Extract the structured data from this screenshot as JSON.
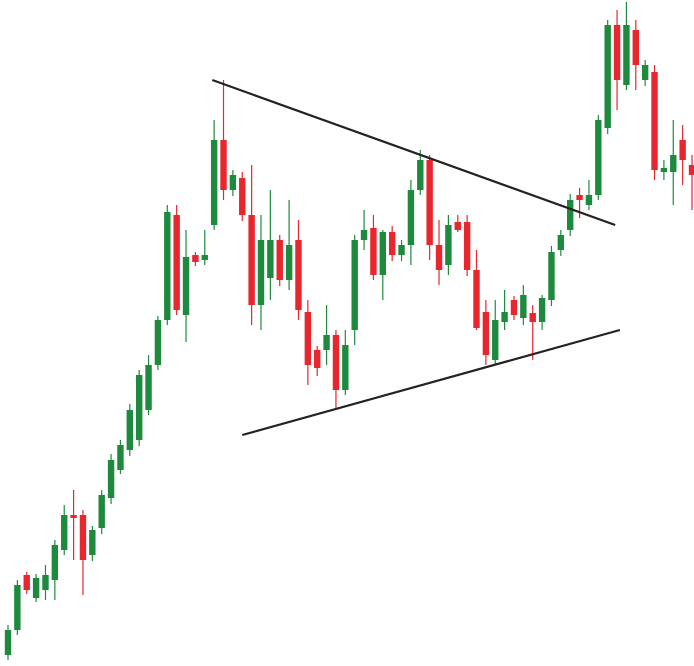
{
  "chart_data": {
    "type": "candlestick",
    "ylim": [
      0,
      666
    ],
    "up_color": "#1e8a3e",
    "down_color": "#e8262d",
    "line_color": "#222222",
    "open": [
      11,
      36,
      91,
      68,
      76,
      86,
      116,
      151,
      151,
      111,
      138,
      168,
      196,
      216,
      226,
      256,
      301,
      346,
      451,
      351,
      411,
      406,
      441,
      526,
      476,
      488,
      451,
      361,
      388,
      426,
      386,
      426,
      354,
      316,
      316,
      331,
      276,
      336,
      426,
      438,
      391,
      434,
      411,
      421,
      476,
      506,
      421,
      401,
      444,
      444,
      396,
      354,
      306,
      344,
      366,
      348,
      353,
      344,
      366,
      416,
      436,
      471,
      461,
      471,
      538,
      641,
      581,
      636,
      586,
      594,
      494,
      494,
      526,
      501
    ],
    "high": [
      41,
      86,
      94,
      92,
      101,
      126,
      161,
      176,
      156,
      140,
      176,
      212,
      226,
      262,
      296,
      311,
      350,
      461,
      461,
      436,
      414,
      436,
      546,
      586,
      496,
      494,
      501,
      451,
      476,
      431,
      466,
      446,
      366,
      320,
      361,
      336,
      336,
      431,
      456,
      451,
      436,
      440,
      426,
      486,
      516,
      511,
      446,
      451,
      451,
      451,
      416,
      366,
      366,
      376,
      370,
      381,
      361,
      371,
      420,
      436,
      472,
      478,
      486,
      551,
      646,
      656,
      664,
      646,
      606,
      601,
      506,
      546,
      541,
      511
    ],
    "low": [
      6,
      31,
      72,
      64,
      66,
      66,
      111,
      106,
      71,
      105,
      132,
      162,
      192,
      210,
      220,
      251,
      296,
      341,
      351,
      324,
      400,
      401,
      436,
      466,
      470,
      445,
      341,
      336,
      366,
      380,
      376,
      346,
      281,
      290,
      301,
      256,
      271,
      321,
      416,
      386,
      366,
      405,
      405,
      401,
      471,
      406,
      381,
      391,
      434,
      390,
      336,
      301,
      301,
      336,
      346,
      341,
      306,
      336,
      360,
      410,
      430,
      448,
      456,
      466,
      532,
      556,
      576,
      576,
      580,
      486,
      486,
      461,
      481,
      456
    ],
    "close": [
      36,
      81,
      76,
      88,
      91,
      121,
      151,
      148,
      106,
      136,
      171,
      206,
      221,
      256,
      291,
      301,
      346,
      454,
      356,
      409,
      404,
      411,
      526,
      476,
      491,
      451,
      361,
      426,
      426,
      386,
      421,
      356,
      301,
      298,
      331,
      276,
      321,
      426,
      436,
      391,
      434,
      411,
      421,
      476,
      506,
      421,
      396,
      441,
      436,
      396,
      338,
      311,
      346,
      354,
      351,
      371,
      344,
      368,
      414,
      431,
      466,
      466,
      471,
      546,
      641,
      586,
      641,
      601,
      601,
      496,
      498,
      511,
      506,
      491
    ],
    "trendlines": [
      {
        "x": [
          21.8,
          64.8
        ],
        "y": [
          586,
          441
        ]
      },
      {
        "x": [
          25,
          65.3
        ],
        "y": [
          231,
          336
        ]
      }
    ]
  }
}
